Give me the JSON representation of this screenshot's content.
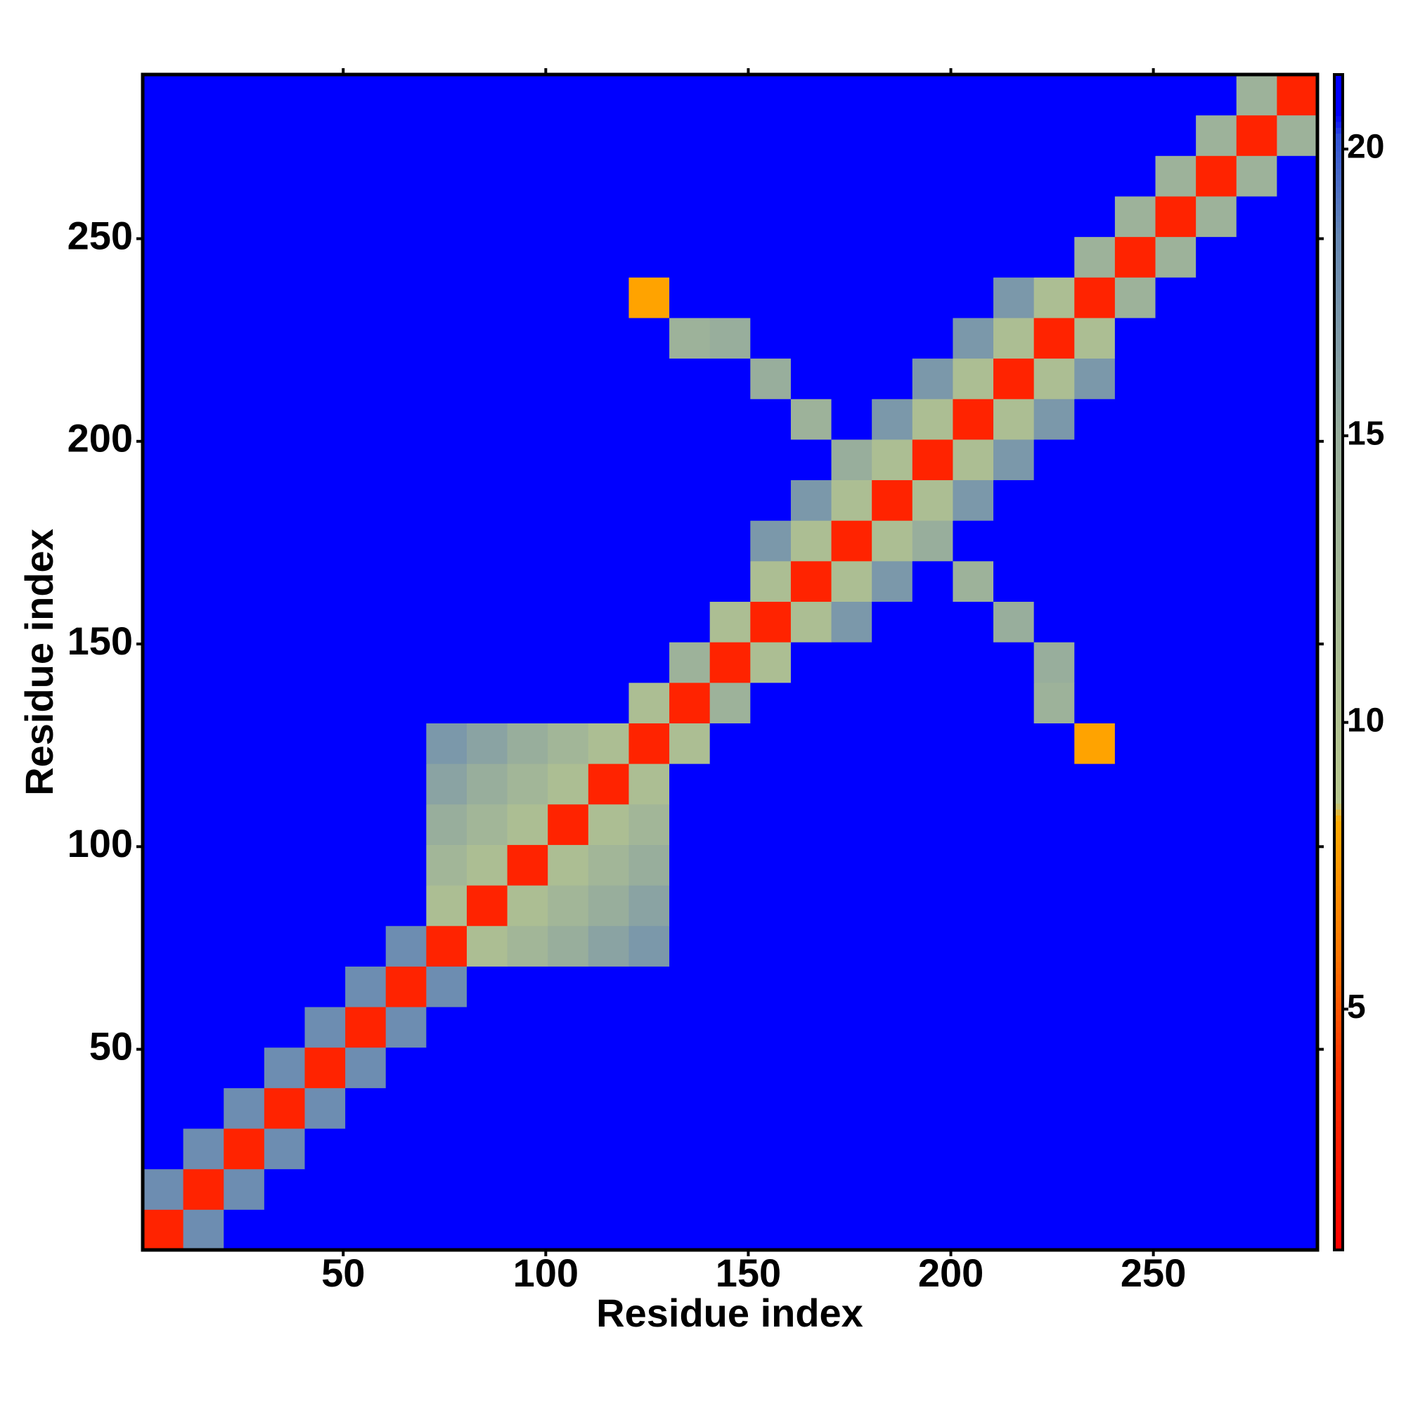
{
  "chart_data": {
    "type": "heatmap",
    "x_label": "Residue index",
    "y_label": "Residue index",
    "xlim": [
      0.5,
      290.5
    ],
    "ylim": [
      0.5,
      290.5
    ],
    "xticks": [
      50,
      100,
      150,
      200,
      250
    ],
    "yticks": [
      50,
      100,
      150,
      200,
      250
    ],
    "x_edges": [
      0.5,
      10.5,
      20.5,
      30.5,
      40.5,
      50.5,
      60.5,
      70.5,
      80.5,
      90.5,
      100.5,
      110.5,
      120.5,
      130.5,
      140.5,
      150.5,
      160.5,
      170.5,
      180.5,
      190.5,
      200.5,
      210.5,
      220.5,
      230.5,
      240.5,
      250.5,
      260.5,
      270.5,
      280.5,
      290.5
    ],
    "y_edges": [
      0.5,
      10.5,
      20.5,
      30.5,
      40.5,
      50.5,
      60.5,
      70.5,
      80.5,
      90.5,
      100.5,
      110.5,
      120.5,
      130.5,
      140.5,
      150.5,
      160.5,
      170.5,
      180.5,
      190.5,
      200.5,
      210.5,
      220.5,
      230.5,
      240.5,
      250.5,
      260.5,
      270.5,
      280.5,
      290.5
    ],
    "z": [
      [
        3,
        18,
        21,
        21,
        21,
        21,
        21,
        21,
        21,
        21,
        21,
        21,
        21,
        21,
        21,
        21,
        21,
        21,
        21,
        21,
        21,
        21,
        21,
        21,
        21,
        21,
        21,
        21,
        21
      ],
      [
        18,
        3,
        18,
        21,
        21,
        21,
        21,
        21,
        21,
        21,
        21,
        21,
        21,
        21,
        21,
        21,
        21,
        21,
        21,
        21,
        21,
        21,
        21,
        21,
        21,
        21,
        21,
        21,
        21
      ],
      [
        21,
        18,
        3,
        18,
        21,
        21,
        21,
        21,
        21,
        21,
        21,
        21,
        21,
        21,
        21,
        21,
        21,
        21,
        21,
        21,
        21,
        21,
        21,
        21,
        21,
        21,
        21,
        21,
        21
      ],
      [
        21,
        21,
        18,
        3,
        18,
        21,
        21,
        21,
        21,
        21,
        21,
        21,
        21,
        21,
        21,
        21,
        21,
        21,
        21,
        21,
        21,
        21,
        21,
        21,
        21,
        21,
        21,
        21,
        21
      ],
      [
        21,
        21,
        21,
        18,
        3,
        18,
        21,
        21,
        21,
        21,
        21,
        21,
        21,
        21,
        21,
        21,
        21,
        21,
        21,
        21,
        21,
        21,
        21,
        21,
        21,
        21,
        21,
        21,
        21
      ],
      [
        21,
        21,
        21,
        21,
        18,
        3,
        18,
        21,
        21,
        21,
        21,
        21,
        21,
        21,
        21,
        21,
        21,
        21,
        21,
        21,
        21,
        21,
        21,
        21,
        21,
        21,
        21,
        21,
        21
      ],
      [
        21,
        21,
        21,
        21,
        21,
        18,
        3,
        18,
        21,
        21,
        21,
        21,
        21,
        21,
        21,
        21,
        21,
        21,
        21,
        21,
        21,
        21,
        21,
        21,
        21,
        21,
        21,
        21,
        21
      ],
      [
        21,
        21,
        21,
        21,
        21,
        21,
        18,
        3,
        11,
        13,
        15,
        16,
        17,
        21,
        21,
        21,
        21,
        21,
        21,
        21,
        21,
        21,
        21,
        21,
        21,
        21,
        21,
        21,
        21
      ],
      [
        21,
        21,
        21,
        21,
        21,
        21,
        21,
        11,
        3,
        11,
        13,
        15,
        16,
        21,
        21,
        21,
        21,
        21,
        21,
        21,
        21,
        21,
        21,
        21,
        21,
        21,
        21,
        21,
        21
      ],
      [
        21,
        21,
        21,
        21,
        21,
        21,
        21,
        13,
        11,
        3,
        11,
        13,
        15,
        21,
        21,
        21,
        21,
        21,
        21,
        21,
        21,
        21,
        21,
        21,
        21,
        21,
        21,
        21,
        21
      ],
      [
        21,
        21,
        21,
        21,
        21,
        21,
        21,
        15,
        13,
        11,
        3,
        11,
        13,
        21,
        21,
        21,
        21,
        21,
        21,
        21,
        21,
        21,
        21,
        21,
        21,
        21,
        21,
        21,
        21
      ],
      [
        21,
        21,
        21,
        21,
        21,
        21,
        21,
        16,
        15,
        13,
        11,
        3,
        11,
        21,
        21,
        21,
        21,
        21,
        21,
        21,
        21,
        21,
        21,
        21,
        21,
        21,
        21,
        21,
        21
      ],
      [
        21,
        21,
        21,
        21,
        21,
        21,
        21,
        17,
        16,
        15,
        13,
        11,
        3,
        11,
        21,
        21,
        21,
        21,
        21,
        21,
        21,
        21,
        21,
        8,
        21,
        21,
        21,
        21,
        21
      ],
      [
        21,
        21,
        21,
        21,
        21,
        21,
        21,
        21,
        21,
        21,
        21,
        21,
        11,
        3,
        14,
        21,
        21,
        21,
        21,
        21,
        21,
        21,
        14,
        21,
        21,
        21,
        21,
        21,
        21
      ],
      [
        21,
        21,
        21,
        21,
        21,
        21,
        21,
        21,
        21,
        21,
        21,
        21,
        21,
        14,
        3,
        11,
        21,
        21,
        21,
        21,
        21,
        21,
        15,
        21,
        21,
        21,
        21,
        21,
        21
      ],
      [
        21,
        21,
        21,
        21,
        21,
        21,
        21,
        21,
        21,
        21,
        21,
        21,
        21,
        21,
        11,
        3,
        11,
        17,
        21,
        21,
        21,
        15,
        21,
        21,
        21,
        21,
        21,
        21,
        21
      ],
      [
        21,
        21,
        21,
        21,
        21,
        21,
        21,
        21,
        21,
        21,
        21,
        21,
        21,
        21,
        21,
        11,
        3,
        11,
        17,
        21,
        14,
        21,
        21,
        21,
        21,
        21,
        21,
        21,
        21
      ],
      [
        21,
        21,
        21,
        21,
        21,
        21,
        21,
        21,
        21,
        21,
        21,
        21,
        21,
        21,
        21,
        17,
        11,
        3,
        11,
        15,
        21,
        21,
        21,
        21,
        21,
        21,
        21,
        21,
        21
      ],
      [
        21,
        21,
        21,
        21,
        21,
        21,
        21,
        21,
        21,
        21,
        21,
        21,
        21,
        21,
        21,
        21,
        17,
        11,
        3,
        11,
        17,
        21,
        21,
        21,
        21,
        21,
        21,
        21,
        21
      ],
      [
        21,
        21,
        21,
        21,
        21,
        21,
        21,
        21,
        21,
        21,
        21,
        21,
        21,
        21,
        21,
        21,
        21,
        15,
        11,
        3,
        11,
        17,
        21,
        21,
        21,
        21,
        21,
        21,
        21
      ],
      [
        21,
        21,
        21,
        21,
        21,
        21,
        21,
        21,
        21,
        21,
        21,
        21,
        21,
        21,
        21,
        21,
        14,
        21,
        17,
        11,
        3,
        11,
        17,
        21,
        21,
        21,
        21,
        21,
        21
      ],
      [
        21,
        21,
        21,
        21,
        21,
        21,
        21,
        21,
        21,
        21,
        21,
        21,
        21,
        21,
        21,
        15,
        21,
        21,
        21,
        17,
        11,
        3,
        11,
        17,
        21,
        21,
        21,
        21,
        21
      ],
      [
        21,
        21,
        21,
        21,
        21,
        21,
        21,
        21,
        21,
        21,
        21,
        21,
        21,
        14,
        15,
        21,
        21,
        21,
        21,
        21,
        17,
        11,
        3,
        11,
        21,
        21,
        21,
        21,
        21
      ],
      [
        21,
        21,
        21,
        21,
        21,
        21,
        21,
        21,
        21,
        21,
        21,
        21,
        8,
        21,
        21,
        21,
        21,
        21,
        21,
        21,
        21,
        17,
        11,
        3,
        14,
        21,
        21,
        21,
        21
      ],
      [
        21,
        21,
        21,
        21,
        21,
        21,
        21,
        21,
        21,
        21,
        21,
        21,
        21,
        21,
        21,
        21,
        21,
        21,
        21,
        21,
        21,
        21,
        21,
        14,
        3,
        14,
        21,
        21,
        21
      ],
      [
        21,
        21,
        21,
        21,
        21,
        21,
        21,
        21,
        21,
        21,
        21,
        21,
        21,
        21,
        21,
        21,
        21,
        21,
        21,
        21,
        21,
        21,
        21,
        21,
        14,
        3,
        14,
        21,
        21
      ],
      [
        21,
        21,
        21,
        21,
        21,
        21,
        21,
        21,
        21,
        21,
        21,
        21,
        21,
        21,
        21,
        21,
        21,
        21,
        21,
        21,
        21,
        21,
        21,
        21,
        21,
        14,
        3,
        14,
        21
      ],
      [
        21,
        21,
        21,
        21,
        21,
        21,
        21,
        21,
        21,
        21,
        21,
        21,
        21,
        21,
        21,
        21,
        21,
        21,
        21,
        21,
        21,
        21,
        21,
        21,
        21,
        21,
        14,
        3,
        14
      ],
      [
        21,
        21,
        21,
        21,
        21,
        21,
        21,
        21,
        21,
        21,
        21,
        21,
        21,
        21,
        21,
        21,
        21,
        21,
        21,
        21,
        21,
        21,
        21,
        21,
        21,
        21,
        21,
        14,
        3
      ]
    ],
    "zlim": [
      0.8,
      21.3
    ],
    "colorbar_ticks": [
      5,
      10,
      15,
      20
    ],
    "colorscale": [
      [
        0.8,
        "#ff0000"
      ],
      [
        4,
        "#ff3300"
      ],
      [
        6,
        "#ff7700"
      ],
      [
        8.3,
        "#ffaa00"
      ],
      [
        8.6,
        "#b8c88e"
      ],
      [
        15,
        "#98ae9c"
      ],
      [
        18.5,
        "#6688b4"
      ],
      [
        20.2,
        "#3355d8"
      ],
      [
        20.6,
        "#0000ff"
      ],
      [
        21.3,
        "#0000ff"
      ]
    ]
  }
}
